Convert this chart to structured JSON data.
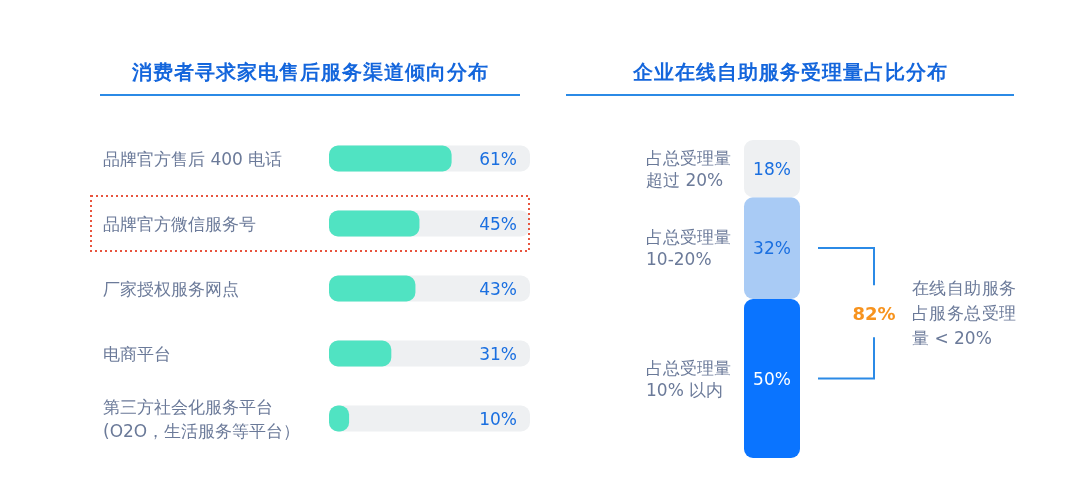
{
  "chart_data": [
    {
      "type": "bar",
      "title": "消费者寻求家电售后服务渠道倾向分布",
      "orientation": "horizontal",
      "categories": [
        "品牌官方售后 400 电话",
        "品牌官方微信服务号",
        "厂家授权服务网点",
        "电商平台",
        "第三方社会化服务平台\n(O2O，生活服务等平台）"
      ],
      "values": [
        61,
        45,
        43,
        31,
        10
      ],
      "color": "#50e3c2",
      "value_labels": [
        "61%",
        "45%",
        "43%",
        "31%",
        "10%"
      ],
      "xlim": [
        0,
        100
      ],
      "tick_labels": "y"
    },
    {
      "type": "bar",
      "title": "企业在线自助服务受理量占比分布",
      "stacked": true,
      "categories": [
        null
      ],
      "series": [
        {
          "name": "占总受理量10% 以内",
          "color": "#0a74ff",
          "values": [
            50
          ],
          "value_labels": [
            "50%"
          ]
        },
        {
          "name": "占总受理量10-20%",
          "color": "#a9cbf5",
          "values": [
            32
          ],
          "value_labels": [
            "32%"
          ]
        },
        {
          "name": "占总受理量超过 20%",
          "color": "#eef0f2",
          "values": [
            18
          ],
          "value_labels": [
            "18%"
          ]
        }
      ],
      "ylim": [
        0,
        100
      ],
      "tick_labels": false,
      "annotations": [
        "82%",
        "在线自助服务占服务总受理量 < 20%"
      ]
    }
  ]
}
